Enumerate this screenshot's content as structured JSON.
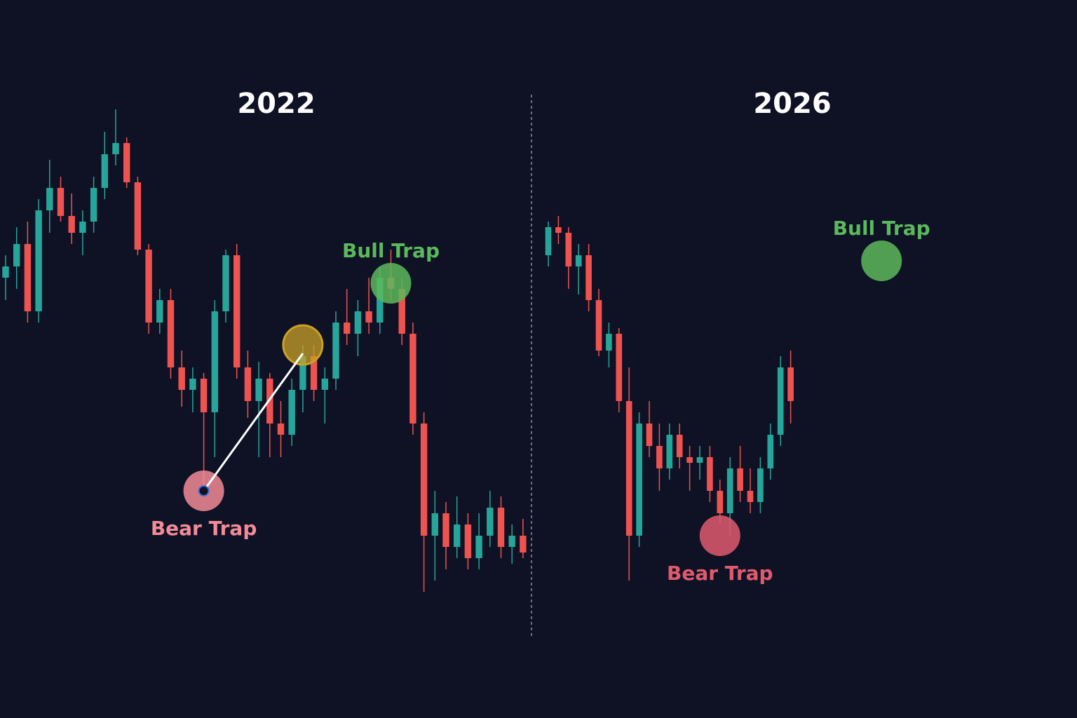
{
  "chart_data": [
    {
      "type": "candlestick",
      "title": "2022",
      "ylim": [
        0,
        100
      ],
      "up_color": "#26a69a",
      "down_color": "#ef5350",
      "ohlc": [
        [
          68,
          72,
          64,
          70
        ],
        [
          70,
          77,
          66,
          74
        ],
        [
          74,
          78,
          60,
          62
        ],
        [
          62,
          82,
          60,
          80
        ],
        [
          80,
          89,
          76,
          84
        ],
        [
          84,
          86,
          78,
          79
        ],
        [
          79,
          83,
          74,
          76
        ],
        [
          76,
          80,
          72,
          78
        ],
        [
          78,
          86,
          76,
          84
        ],
        [
          84,
          94,
          82,
          90
        ],
        [
          90,
          98,
          88,
          92
        ],
        [
          92,
          93,
          84,
          85
        ],
        [
          85,
          86,
          72,
          73
        ],
        [
          73,
          74,
          58,
          60
        ],
        [
          60,
          66,
          58,
          64
        ],
        [
          64,
          66,
          50,
          52
        ],
        [
          52,
          55,
          45,
          48
        ],
        [
          48,
          52,
          44,
          50
        ],
        [
          50,
          51,
          30,
          44
        ],
        [
          44,
          64,
          36,
          62
        ],
        [
          62,
          73,
          60,
          72
        ],
        [
          72,
          74,
          50,
          52
        ],
        [
          52,
          55,
          43,
          46
        ],
        [
          46,
          53,
          36,
          50
        ],
        [
          50,
          51,
          36,
          42
        ],
        [
          42,
          46,
          36,
          40
        ],
        [
          40,
          50,
          38,
          48
        ],
        [
          48,
          56,
          44,
          54
        ],
        [
          54,
          56,
          46,
          48
        ],
        [
          48,
          52,
          42,
          50
        ],
        [
          50,
          62,
          48,
          60
        ],
        [
          60,
          66,
          56,
          58
        ],
        [
          58,
          64,
          54,
          62
        ],
        [
          62,
          68,
          58,
          60
        ],
        [
          60,
          70,
          58,
          68
        ],
        [
          68,
          73,
          64,
          66
        ],
        [
          66,
          68,
          56,
          58
        ],
        [
          58,
          60,
          40,
          42
        ],
        [
          42,
          44,
          12,
          22
        ],
        [
          22,
          30,
          14,
          26
        ],
        [
          26,
          28,
          16,
          20
        ],
        [
          20,
          29,
          18,
          24
        ],
        [
          24,
          26,
          16,
          18
        ],
        [
          18,
          26,
          16,
          22
        ],
        [
          22,
          30,
          20,
          27
        ],
        [
          27,
          29,
          18,
          20
        ],
        [
          20,
          24,
          17,
          22
        ],
        [
          22,
          25,
          18,
          19
        ]
      ],
      "annotations": [
        {
          "text": "Bear Trap",
          "index": 18,
          "price": 30,
          "color": "#f28b97"
        },
        {
          "index": 27,
          "price": 56,
          "color": "#c9a227"
        },
        {
          "text": "Bull Trap",
          "index": 35,
          "price": 67,
          "color": "#5cb85c"
        }
      ]
    },
    {
      "type": "candlestick",
      "title": "2026",
      "ylim": [
        0,
        100
      ],
      "up_color": "#26a69a",
      "down_color": "#ef5350",
      "ohlc": [
        [
          72,
          78,
          70,
          77
        ],
        [
          77,
          79,
          74,
          76
        ],
        [
          76,
          77,
          66,
          70
        ],
        [
          70,
          74,
          65,
          72
        ],
        [
          72,
          74,
          62,
          64
        ],
        [
          64,
          66,
          54,
          55
        ],
        [
          55,
          60,
          52,
          58
        ],
        [
          58,
          59,
          44,
          46
        ],
        [
          46,
          52,
          14,
          22
        ],
        [
          22,
          44,
          20,
          42
        ],
        [
          42,
          46,
          36,
          38
        ],
        [
          38,
          42,
          30,
          34
        ],
        [
          34,
          42,
          32,
          40
        ],
        [
          40,
          42,
          34,
          36
        ],
        [
          36,
          38,
          30,
          35
        ],
        [
          35,
          38,
          32,
          36
        ],
        [
          36,
          38,
          28,
          30
        ],
        [
          30,
          32,
          24,
          26
        ],
        [
          26,
          36,
          22,
          34
        ],
        [
          34,
          38,
          28,
          30
        ],
        [
          30,
          34,
          26,
          28
        ],
        [
          28,
          36,
          26,
          34
        ],
        [
          34,
          42,
          32,
          40
        ],
        [
          40,
          54,
          38,
          52
        ],
        [
          52,
          55,
          42,
          46
        ]
      ],
      "annotations": [
        {
          "text": "Bear Trap",
          "index": 17,
          "price": 22,
          "color": "#e05a6e"
        },
        {
          "text": "Bull Trap",
          "index": 33,
          "price": 71,
          "color": "#5cb85c"
        }
      ]
    }
  ]
}
